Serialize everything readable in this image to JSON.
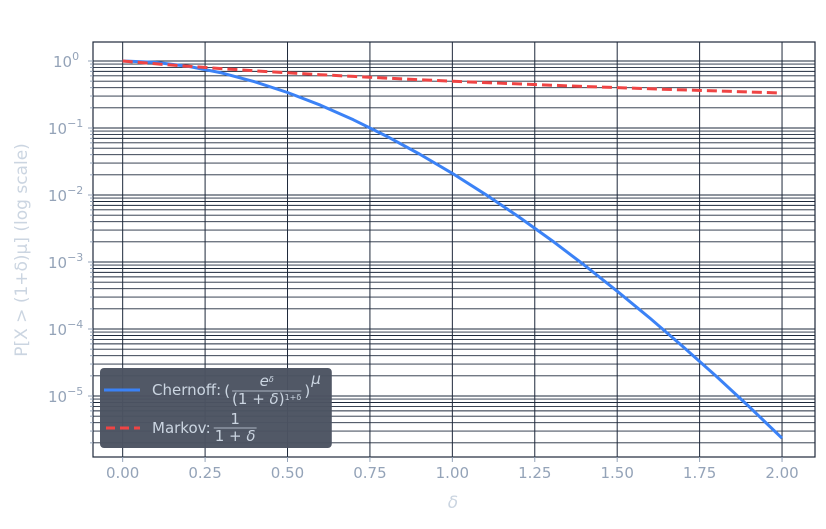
{
  "chart_data": {
    "type": "line",
    "title": "",
    "xlabel": "δ",
    "ylabel": "P[X > (1+δ)μ] (log scale)",
    "xlim": [
      -0.09,
      2.1
    ],
    "ylim": [
      1.23e-06,
      1.92
    ],
    "yscale": "log",
    "grid": true,
    "x_ticks": [
      "0.00",
      "0.25",
      "0.50",
      "0.75",
      "1.00",
      "1.25",
      "1.50",
      "1.75",
      "2.00"
    ],
    "y_ticks": [
      {
        "base": "10",
        "exp": "0"
      },
      {
        "base": "10",
        "exp": "−1"
      },
      {
        "base": "10",
        "exp": "−2"
      },
      {
        "base": "10",
        "exp": "−3"
      },
      {
        "base": "10",
        "exp": "−4"
      },
      {
        "base": "10",
        "exp": "−5"
      }
    ],
    "legend_position": "bottom-left",
    "x": [
      0,
      0.1,
      0.2,
      0.3,
      0.4,
      0.5,
      0.6,
      0.7,
      0.8,
      0.9,
      1.0,
      1.1,
      1.2,
      1.3,
      1.4,
      1.5,
      1.6,
      1.7,
      1.8,
      1.9,
      2.0
    ],
    "series": [
      {
        "name": "Chernoff: (e^δ / (1+δ)^(1+δ))^μ",
        "legend_main": "Chernoff: ",
        "color": "#3b82f6",
        "style": "solid",
        "values": [
          1,
          0.9527,
          0.8288,
          0.6632,
          0.4913,
          0.3389,
          0.2187,
          0.1326,
          0.0757,
          0.0409,
          0.021,
          0.01024,
          0.00477,
          0.00212,
          0.000901,
          0.000367,
          0.000144,
          5.45e-05,
          1.98e-05,
          6.96e-06,
          2.35e-06
        ]
      },
      {
        "name": "Markov: 1/(1+δ)",
        "legend_main": "Markov: ",
        "color": "#ef4444",
        "style": "dashed",
        "values": [
          1,
          0.9091,
          0.8333,
          0.7692,
          0.7143,
          0.6667,
          0.625,
          0.5882,
          0.5556,
          0.5263,
          0.5,
          0.4762,
          0.4545,
          0.4348,
          0.4167,
          0.4,
          0.3846,
          0.3704,
          0.3571,
          0.3448,
          0.3333
        ]
      }
    ]
  }
}
